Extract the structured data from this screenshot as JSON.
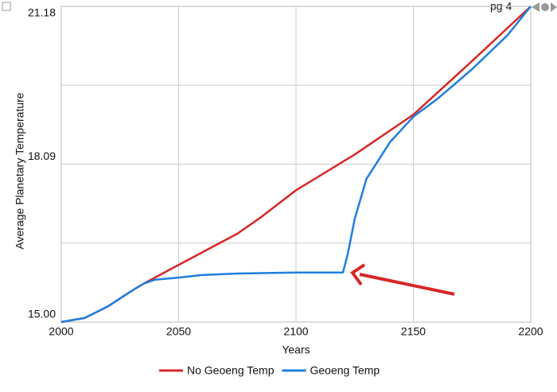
{
  "chart_data": {
    "type": "line",
    "page_label": "pg 4",
    "xlabel": "Years",
    "ylabel": "Average Planetary Temperature",
    "xlim": [
      2000,
      2200
    ],
    "xticks": [
      2000,
      2050,
      2100,
      2150,
      2200
    ],
    "ylim": [
      15,
      21.18
    ],
    "yticks": [
      {
        "value": 15,
        "label": "15.00"
      },
      18.09,
      21.18
    ],
    "grid": true,
    "legend": "bottom",
    "series": [
      {
        "name": "No Geoeng Temp",
        "color": "#d62728",
        "x": [
          2000,
          2010,
          2020,
          2030,
          2035,
          2050,
          2075,
          2085,
          2100,
          2125,
          2150,
          2165,
          2175,
          2200
        ],
        "values": [
          15.0,
          15.08,
          15.31,
          15.61,
          15.75,
          16.12,
          16.73,
          17.05,
          17.58,
          18.28,
          19.06,
          19.69,
          20.11,
          21.18
        ]
      },
      {
        "name": "Geoeng Temp",
        "color": "#1f7fdc",
        "x": [
          2000,
          2010,
          2020,
          2030,
          2035,
          2040,
          2050,
          2060,
          2075,
          2100,
          2120,
          2122,
          2125,
          2130,
          2140,
          2150,
          2160,
          2175,
          2190,
          2200
        ],
        "values": [
          15.0,
          15.08,
          15.31,
          15.61,
          15.75,
          15.83,
          15.87,
          15.92,
          15.95,
          15.97,
          15.97,
          16.32,
          17.02,
          17.8,
          18.52,
          19.02,
          19.36,
          19.95,
          20.61,
          21.18
        ]
      }
    ]
  }
}
